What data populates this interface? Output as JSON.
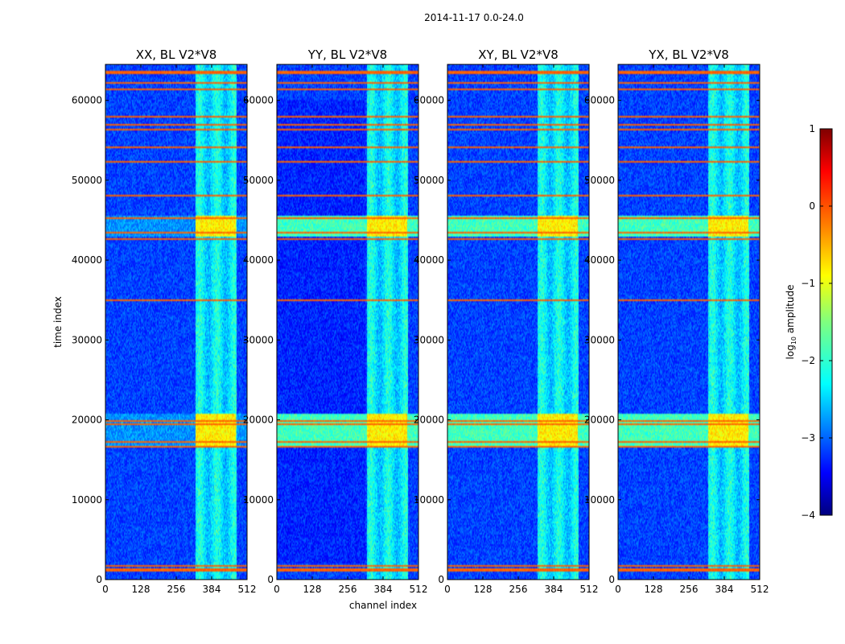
{
  "chart_data": {
    "type": "heatmap",
    "suptitle": "2014-11-17 0.0-24.0",
    "xlabel": "channel index",
    "ylabel": "time index",
    "xlim": [
      0,
      512
    ],
    "ylim": [
      0,
      64500
    ],
    "xticks": [
      0,
      128,
      256,
      384,
      512
    ],
    "yticks": [
      0,
      10000,
      20000,
      30000,
      40000,
      50000,
      60000
    ],
    "xtick_labels": [
      "0",
      "128",
      "256",
      "384",
      "512"
    ],
    "ytick_labels": [
      "0",
      "10000",
      "20000",
      "30000",
      "40000",
      "50000",
      "60000"
    ],
    "colormap": "jet",
    "panels": [
      {
        "title": "XX, BL V2*V8",
        "strong_rfi_band": false
      },
      {
        "title": "YY, BL V2*V8",
        "strong_rfi_band": true
      },
      {
        "title": "XY, BL V2*V8",
        "strong_rfi_band": true
      },
      {
        "title": "YX, BL V2*V8",
        "strong_rfi_band": true
      }
    ],
    "colorbar": {
      "label": "log10 amplitude",
      "label_main": "log",
      "label_sub": "10",
      "label_tail": " amplitude",
      "range": [
        -4,
        1
      ],
      "ticks": [
        1,
        0,
        -1,
        -2,
        -3,
        -4
      ],
      "tick_labels": [
        "1",
        "0",
        "−1",
        "−2",
        "−3",
        "−4"
      ]
    },
    "features": {
      "bright_channel_range": [
        325,
        475
      ],
      "hot_blocks": [
        {
          "t_range": [
            43000,
            45600
          ],
          "ch_range": [
            325,
            470
          ]
        },
        {
          "t_range": [
            16800,
            20800
          ],
          "ch_range": [
            325,
            470
          ]
        }
      ],
      "flagged_rows": [
        1200,
        1700,
        16600,
        17300,
        19500,
        19900,
        35000,
        42700,
        43400,
        45300,
        48000,
        52300,
        54100,
        56400,
        56900,
        58000,
        61300,
        62200,
        63500
      ]
    }
  }
}
